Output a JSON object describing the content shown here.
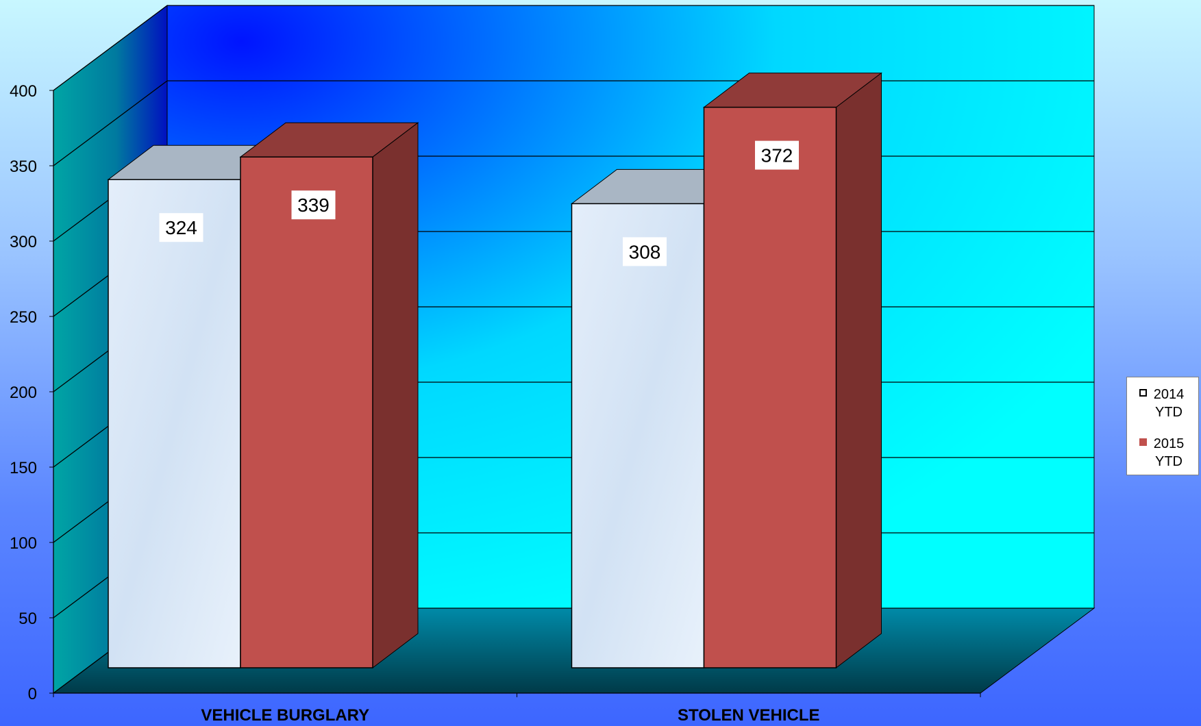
{
  "chart_data": {
    "type": "bar",
    "categories": [
      "VEHICLE BURGLARY",
      "STOLEN VEHICLE"
    ],
    "series": [
      {
        "name": "2014 YTD",
        "values": [
          324,
          308
        ],
        "color": "#dbe8f6",
        "legend_lines": [
          "2014",
          "YTD"
        ]
      },
      {
        "name": "2015 YTD",
        "values": [
          339,
          372
        ],
        "color": "#c0504d",
        "legend_lines": [
          "2015",
          "YTD"
        ]
      }
    ],
    "data_labels": [
      "324",
      "308",
      "339",
      "372"
    ],
    "y_ticks": [
      "0",
      "50",
      "100",
      "150",
      "200",
      "250",
      "300",
      "350",
      "400"
    ],
    "ylim": [
      0,
      400
    ],
    "grid": true,
    "legend_position": "right",
    "style": "3d-clustered-column",
    "colors": {
      "back_wall_top": "#0033ff",
      "back_wall_bottom": "#00ffff",
      "side_wall": "#009a9a",
      "floor": "#006c80",
      "series_2015_top": "#903b39",
      "series_2015_side": "#7a302e",
      "series_2014_top": "#a9b6c4"
    }
  }
}
